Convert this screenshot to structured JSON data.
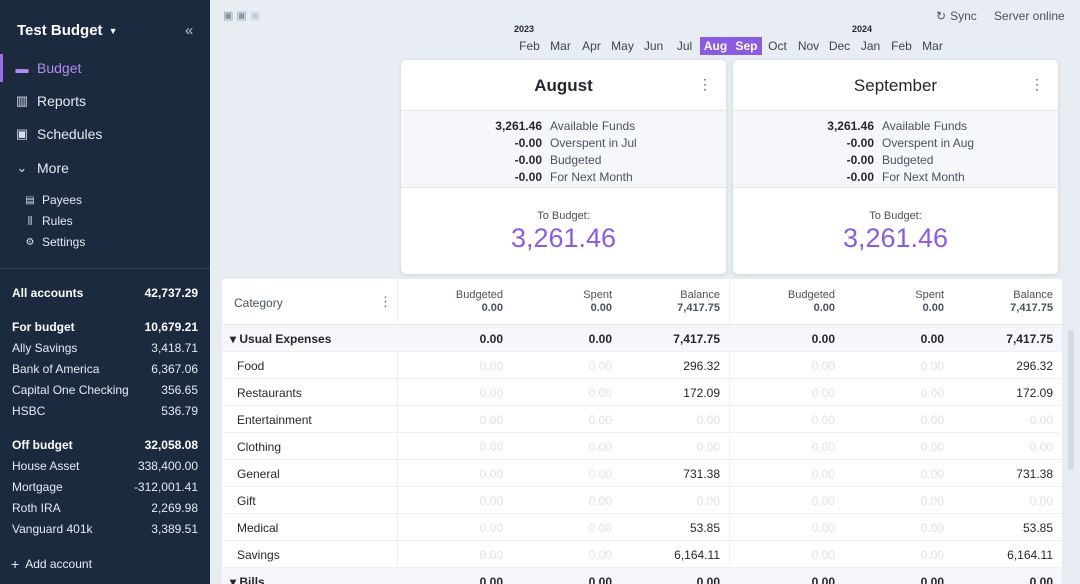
{
  "sidebar": {
    "budget_name": "Test Budget",
    "nav": [
      {
        "label": "Budget",
        "icon": "wallet-icon",
        "glyph": "▬"
      },
      {
        "label": "Reports",
        "icon": "bar-chart-icon",
        "glyph": "▥"
      },
      {
        "label": "Schedules",
        "icon": "calendar-icon",
        "glyph": "▣"
      },
      {
        "label": "More",
        "icon": "chevron-down-icon",
        "glyph": "⌄"
      }
    ],
    "sub_nav": [
      {
        "label": "Payees",
        "icon": "payees-icon",
        "glyph": "▤"
      },
      {
        "label": "Rules",
        "icon": "rules-icon",
        "glyph": "⫼"
      },
      {
        "label": "Settings",
        "icon": "gear-icon",
        "glyph": "⚙"
      }
    ],
    "all_accounts": {
      "label": "All accounts",
      "value": "42,737.29"
    },
    "for_budget": {
      "label": "For budget",
      "value": "10,679.21"
    },
    "budget_accounts": [
      {
        "label": "Ally Savings",
        "value": "3,418.71"
      },
      {
        "label": "Bank of America",
        "value": "6,367.06"
      },
      {
        "label": "Capital One Checking",
        "value": "356.65"
      },
      {
        "label": "HSBC",
        "value": "536.79"
      }
    ],
    "off_budget": {
      "label": "Off budget",
      "value": "32,058.08"
    },
    "offbudget_accounts": [
      {
        "label": "House Asset",
        "value": "338,400.00"
      },
      {
        "label": "Mortgage",
        "value": "-312,001.41"
      },
      {
        "label": "Roth IRA",
        "value": "2,269.98"
      },
      {
        "label": "Vanguard 401k",
        "value": "3,389.51"
      }
    ],
    "add_account": "Add account"
  },
  "topbar": {
    "sync": "Sync",
    "server": "Server online",
    "year_2023": "2023",
    "year_2024": "2024",
    "months": [
      "Feb",
      "Mar",
      "Apr",
      "May",
      "Jun",
      "Jul",
      "Aug",
      "Sep",
      "Oct",
      "Nov",
      "Dec",
      "Jan",
      "Feb",
      "Mar"
    ]
  },
  "months": [
    {
      "title": "August",
      "summary": [
        {
          "value": "3,261.46",
          "label": "Available Funds"
        },
        {
          "value": "-0.00",
          "label": "Overspent in Jul"
        },
        {
          "value": "-0.00",
          "label": "Budgeted"
        },
        {
          "value": "-0.00",
          "label": "For Next Month"
        }
      ],
      "to_budget_label": "To Budget:",
      "to_budget": "3,261.46"
    },
    {
      "title": "September",
      "summary": [
        {
          "value": "3,261.46",
          "label": "Available Funds"
        },
        {
          "value": "-0.00",
          "label": "Overspent in Aug"
        },
        {
          "value": "-0.00",
          "label": "Budgeted"
        },
        {
          "value": "-0.00",
          "label": "For Next Month"
        }
      ],
      "to_budget_label": "To Budget:",
      "to_budget": "3,261.46"
    }
  ],
  "table": {
    "category_header": "Category",
    "headers": [
      {
        "label": "Budgeted",
        "value": "0.00"
      },
      {
        "label": "Spent",
        "value": "0.00"
      },
      {
        "label": "Balance",
        "value": "7,417.75"
      },
      {
        "label": "Budgeted",
        "value": "0.00"
      },
      {
        "label": "Spent",
        "value": "0.00"
      },
      {
        "label": "Balance",
        "value": "7,417.75"
      }
    ],
    "rows": [
      {
        "name": "Usual Expenses",
        "group": true,
        "cells": [
          "0.00",
          "0.00",
          "7,417.75",
          "0.00",
          "0.00",
          "7,417.75"
        ]
      },
      {
        "name": "Food",
        "cells": [
          "0.00",
          "0.00",
          "296.32",
          "0.00",
          "0.00",
          "296.32"
        ]
      },
      {
        "name": "Restaurants",
        "cells": [
          "0.00",
          "0.00",
          "172.09",
          "0.00",
          "0.00",
          "172.09"
        ]
      },
      {
        "name": "Entertainment",
        "cells": [
          "0.00",
          "0.00",
          "0.00",
          "0.00",
          "0.00",
          "0.00"
        ]
      },
      {
        "name": "Clothing",
        "cells": [
          "0.00",
          "0.00",
          "0.00",
          "0.00",
          "0.00",
          "0.00"
        ]
      },
      {
        "name": "General",
        "cells": [
          "0.00",
          "0.00",
          "731.38",
          "0.00",
          "0.00",
          "731.38"
        ]
      },
      {
        "name": "Gift",
        "cells": [
          "0.00",
          "0.00",
          "0.00",
          "0.00",
          "0.00",
          "0.00"
        ]
      },
      {
        "name": "Medical",
        "cells": [
          "0.00",
          "0.00",
          "53.85",
          "0.00",
          "0.00",
          "53.85"
        ]
      },
      {
        "name": "Savings",
        "cells": [
          "0.00",
          "0.00",
          "6,164.11",
          "0.00",
          "0.00",
          "6,164.11"
        ]
      },
      {
        "name": "Bills",
        "group": true,
        "cells": [
          "0.00",
          "0.00",
          "0.00",
          "0.00",
          "0.00",
          "0.00"
        ]
      }
    ]
  }
}
